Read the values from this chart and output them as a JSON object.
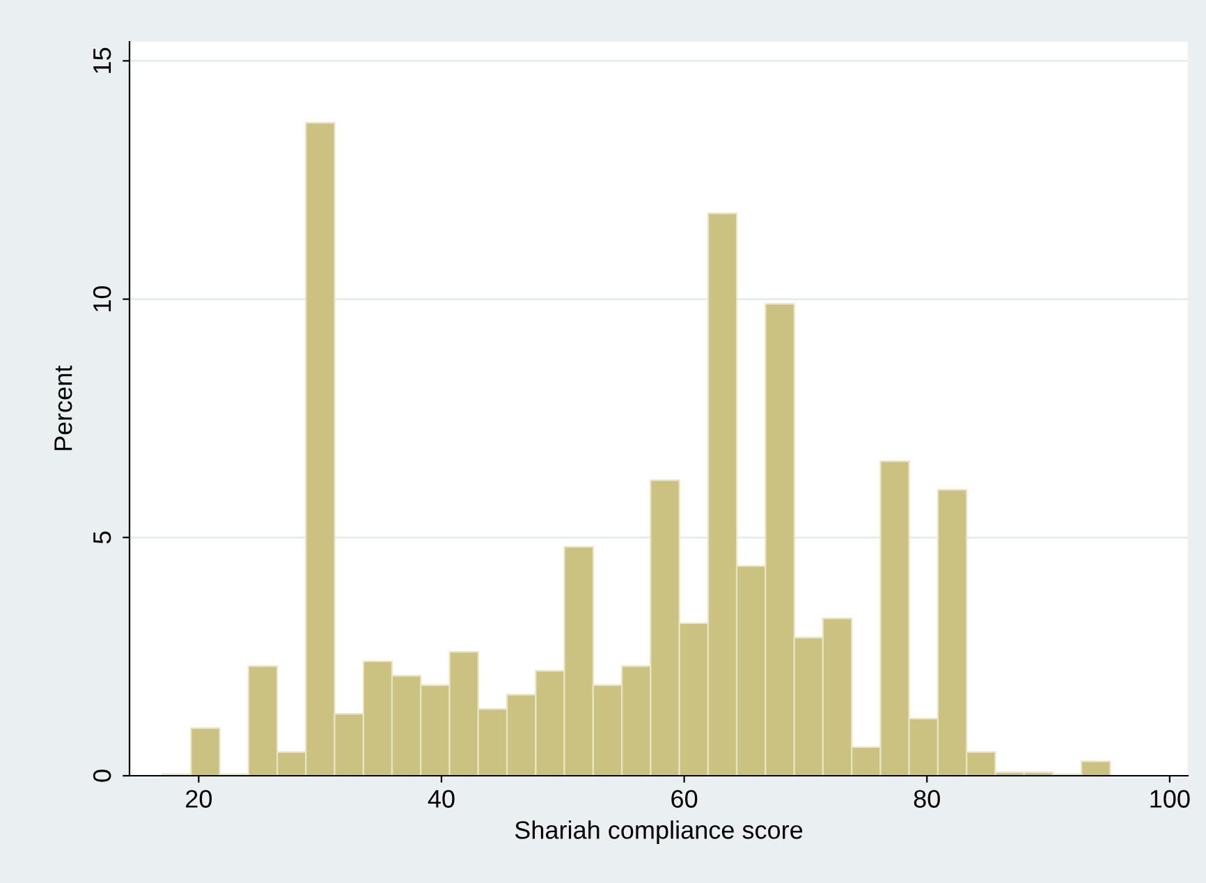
{
  "chart_data": {
    "type": "histogram",
    "xlabel": "Shariah compliance score",
    "ylabel": "Percent",
    "bins": [
      17.0,
      19.37,
      21.73,
      24.1,
      26.47,
      28.83,
      31.2,
      33.57,
      35.93,
      38.3,
      40.67,
      43.03,
      45.4,
      47.77,
      50.13,
      52.5,
      54.87,
      57.23,
      59.6,
      61.97,
      64.33,
      66.7,
      69.07,
      71.43,
      73.8,
      76.17,
      78.53,
      80.9,
      83.27,
      85.63,
      88.0,
      90.37,
      92.73,
      95.1
    ],
    "values": [
      0.03,
      1.0,
      0.03,
      2.3,
      0.5,
      13.7,
      1.3,
      2.4,
      2.1,
      1.9,
      2.6,
      1.4,
      1.7,
      2.2,
      4.8,
      1.9,
      2.3,
      6.2,
      3.2,
      11.8,
      4.4,
      9.9,
      2.9,
      3.3,
      0.6,
      6.6,
      1.2,
      6.0,
      0.5,
      0.07,
      0.07,
      0.03,
      0.3
    ],
    "color": "#cbc281",
    "xlim": [
      14.3,
      101.5
    ],
    "ylim": [
      0,
      15.4
    ],
    "xticks": [
      20,
      40,
      60,
      80,
      100
    ],
    "yticks": [
      0,
      5,
      10,
      15
    ],
    "grid": "y"
  }
}
